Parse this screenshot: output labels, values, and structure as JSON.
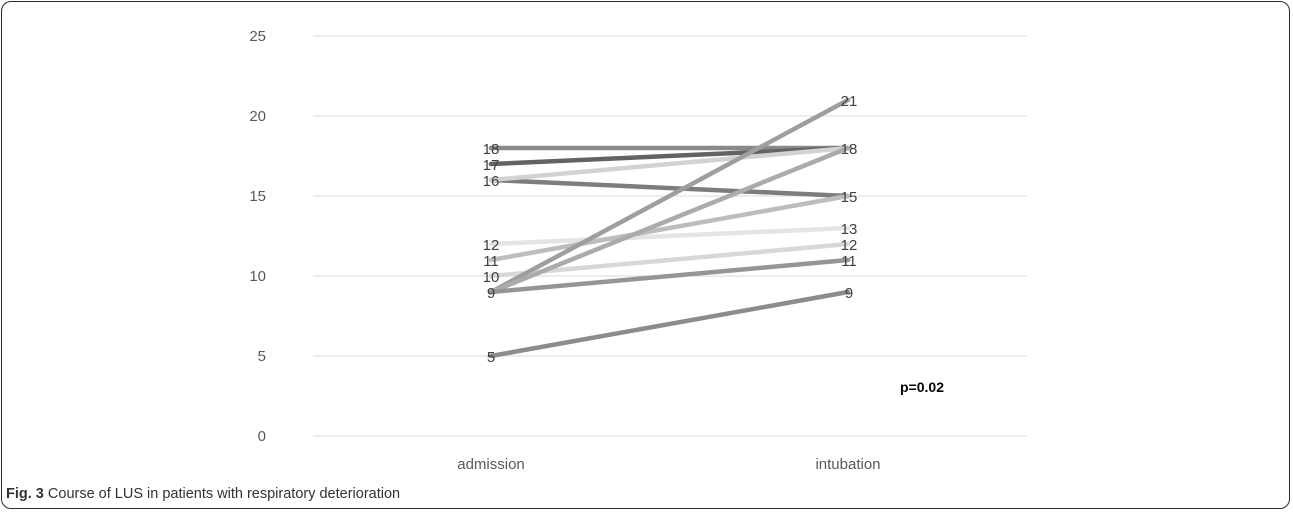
{
  "chart_data": {
    "type": "line",
    "categories": [
      "admission",
      "intubation"
    ],
    "ylim": [
      0,
      25
    ],
    "yticks": [
      0,
      5,
      10,
      15,
      20,
      25
    ],
    "grid": true,
    "series": [
      {
        "values": [
          18,
          18
        ],
        "color": "#8a8a8a"
      },
      {
        "values": [
          17,
          18
        ],
        "color": "#636363"
      },
      {
        "values": [
          16,
          15
        ],
        "color": "#7d7d7d"
      },
      {
        "values": [
          16,
          18
        ],
        "color": "#d2d2d2"
      },
      {
        "values": [
          12,
          13
        ],
        "color": "#e4e4e4"
      },
      {
        "values": [
          11,
          15
        ],
        "color": "#bdbdbd"
      },
      {
        "values": [
          10,
          12
        ],
        "color": "#d8d8d8"
      },
      {
        "values": [
          9,
          21
        ],
        "color": "#9e9e9e"
      },
      {
        "values": [
          9,
          18
        ],
        "color": "#ababab"
      },
      {
        "values": [
          9,
          11
        ],
        "color": "#959595"
      },
      {
        "values": [
          5,
          9
        ],
        "color": "#8c8c8c"
      }
    ],
    "data_labels": {
      "admission": [
        "18",
        "17",
        "16",
        "12",
        "11",
        "10",
        "9",
        "5"
      ],
      "intubation": [
        "21",
        "18",
        "15",
        "13",
        "12",
        "11",
        "9"
      ]
    },
    "annotation": "p=0.02"
  },
  "caption": {
    "figure_label": "Fig. 3",
    "text": " Course of LUS in patients with respiratory deterioration"
  }
}
